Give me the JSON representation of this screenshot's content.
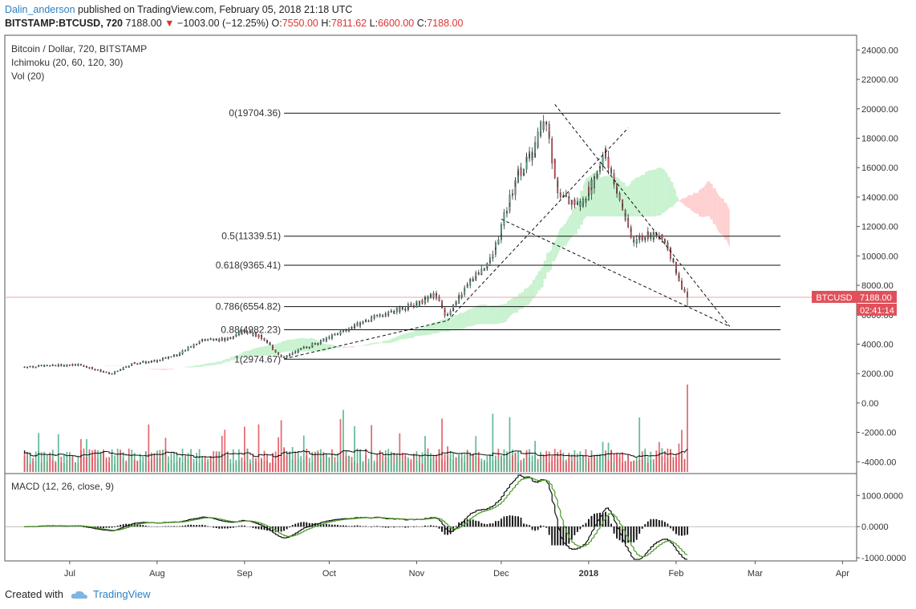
{
  "header": {
    "author": "Dalin_anderson",
    "published_text": "published on TradingView.com, February 05, 2018 21:18 UTC",
    "symbol": "BITSTAMP:BTCUSD, 720",
    "last": "7188.00",
    "change_arrow": "▼",
    "change": "−1003.00 (−12.25%)",
    "o_label": "O:",
    "o_value": "7550.00",
    "h_label": "H:",
    "h_value": "7811.62",
    "l_label": "L:",
    "l_value": "6600.00",
    "c_label": "C:",
    "c_value": "7188.00"
  },
  "legend": {
    "main": "Bitcoin / Dollar, 720, BITSTAMP",
    "ichimoku": "Ichimoku (20, 60, 120, 30)",
    "vol": "Vol (20)",
    "macd": "MACD (12, 26, close, 9)"
  },
  "footer": {
    "created_with": "Created with",
    "brand": "TradingView"
  },
  "colors": {
    "up": "#4caf87",
    "down": "#e0505a",
    "price_tag": "#e0505a",
    "cloud_green": "#bff0c8",
    "cloud_red": "#ffc8c8",
    "macd_signal": "#4c9a2a",
    "link": "#2a7fc4"
  },
  "chart_data": {
    "type": "candlestick",
    "title": "Bitcoin / Dollar, 720, BITSTAMP",
    "price_axis": {
      "ylim": [
        -4800,
        25000
      ],
      "ticks": [
        "24000.00",
        "22000.00",
        "20000.00",
        "18000.00",
        "16000.00",
        "14000.00",
        "12000.00",
        "10000.00",
        "8000.00",
        "6000.00",
        "4000.00",
        "2000.00",
        "0.00",
        "-2000.00",
        "-4000.00"
      ]
    },
    "macd_axis": {
      "ylim": [
        -1100,
        1700
      ],
      "ticks": [
        "1000.0000",
        "0.0000",
        "-1000.0000"
      ]
    },
    "x_ticks": [
      "Jul",
      "Aug",
      "Sep",
      "Oct",
      "Nov",
      "Dec",
      "2018",
      "Feb",
      "Mar",
      "Apr"
    ],
    "last_price": {
      "label": "BTCUSD",
      "value": "7188.00",
      "countdown": "02:41:14"
    },
    "fib_levels": [
      {
        "label": "0(19704.36)",
        "value": 19704.36
      },
      {
        "label": "0.5(11339.51)",
        "value": 11339.51
      },
      {
        "label": "0.618(9365.41)",
        "value": 9365.41
      },
      {
        "label": "0.786(6554.82)",
        "value": 6554.82
      },
      {
        "label": "0.88(4982.23)",
        "value": 4982.23
      },
      {
        "label": "1(2974.67)",
        "value": 2974.67
      }
    ],
    "price_path": [
      {
        "d": "2017-06-15",
        "v": 2450
      },
      {
        "d": "2017-06-25",
        "v": 2550
      },
      {
        "d": "2017-07-05",
        "v": 2600
      },
      {
        "d": "2017-07-16",
        "v": 1950
      },
      {
        "d": "2017-07-24",
        "v": 2700
      },
      {
        "d": "2017-08-01",
        "v": 2850
      },
      {
        "d": "2017-08-10",
        "v": 3400
      },
      {
        "d": "2017-08-17",
        "v": 4300
      },
      {
        "d": "2017-08-25",
        "v": 4300
      },
      {
        "d": "2017-09-01",
        "v": 4900
      },
      {
        "d": "2017-09-07",
        "v": 4500
      },
      {
        "d": "2017-09-15",
        "v": 3050
      },
      {
        "d": "2017-09-22",
        "v": 3700
      },
      {
        "d": "2017-10-01",
        "v": 4400
      },
      {
        "d": "2017-10-12",
        "v": 5400
      },
      {
        "d": "2017-10-20",
        "v": 6000
      },
      {
        "d": "2017-11-01",
        "v": 6700
      },
      {
        "d": "2017-11-08",
        "v": 7400
      },
      {
        "d": "2017-11-12",
        "v": 5900
      },
      {
        "d": "2017-11-20",
        "v": 8200
      },
      {
        "d": "2017-11-28",
        "v": 9800
      },
      {
        "d": "2017-12-07",
        "v": 15500
      },
      {
        "d": "2017-12-12",
        "v": 16800
      },
      {
        "d": "2017-12-17",
        "v": 19500
      },
      {
        "d": "2017-12-22",
        "v": 13900
      },
      {
        "d": "2017-12-30",
        "v": 13500
      },
      {
        "d": "2018-01-07",
        "v": 17000
      },
      {
        "d": "2018-01-17",
        "v": 11000
      },
      {
        "d": "2018-01-22",
        "v": 11500
      },
      {
        "d": "2018-01-29",
        "v": 11000
      },
      {
        "d": "2018-02-02",
        "v": 8500
      },
      {
        "d": "2018-02-05",
        "v": 7188
      }
    ],
    "volume": {
      "ma_label": "Vol (20)"
    },
    "macd": {
      "label": "MACD (12, 26, close, 9)"
    }
  }
}
